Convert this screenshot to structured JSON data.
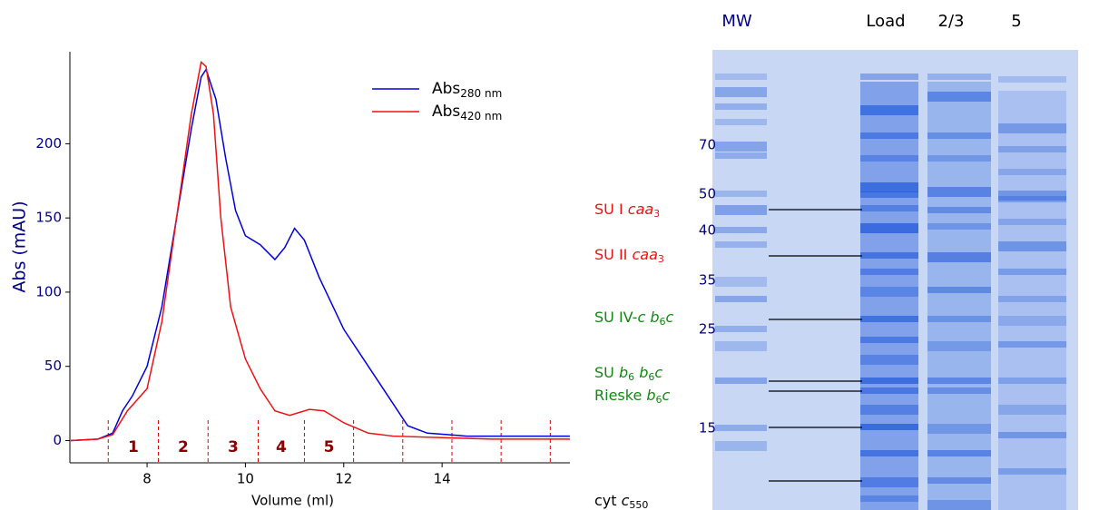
{
  "chart_data": {
    "type": "line",
    "x_label": "Volume (ml)",
    "y_label": "Abs (mAU)",
    "xlim": [
      6.43,
      16.6
    ],
    "ylim": [
      -15,
      262
    ],
    "xticks": [
      8,
      10,
      12,
      14
    ],
    "yticks": [
      0,
      50,
      100,
      150,
      200
    ],
    "grid": false,
    "series": [
      {
        "name": "Abs",
        "name_sub": "280 nm",
        "color": "#0000dd",
        "x": [
          6.45,
          7.0,
          7.3,
          7.5,
          7.7,
          8.0,
          8.3,
          8.6,
          8.9,
          9.1,
          9.2,
          9.4,
          9.6,
          9.8,
          10.0,
          10.3,
          10.6,
          10.8,
          11.0,
          11.2,
          11.5,
          12.0,
          12.5,
          13.0,
          13.3,
          13.7,
          14.5,
          15.5,
          16.6
        ],
        "values": [
          0,
          1,
          5,
          20,
          30,
          50,
          90,
          150,
          210,
          245,
          250,
          230,
          190,
          155,
          138,
          132,
          122,
          130,
          143,
          135,
          110,
          75,
          50,
          25,
          10,
          5,
          3,
          3,
          3
        ]
      },
      {
        "name": "Abs",
        "name_sub": "420 nm",
        "color": "#ee1111",
        "x": [
          6.45,
          7.0,
          7.3,
          7.6,
          8.0,
          8.3,
          8.6,
          8.9,
          9.1,
          9.2,
          9.35,
          9.5,
          9.7,
          10.0,
          10.3,
          10.6,
          10.9,
          11.3,
          11.6,
          12.0,
          12.5,
          13.0,
          14.0,
          15.0,
          16.6
        ],
        "values": [
          0,
          1,
          4,
          20,
          35,
          80,
          150,
          220,
          255,
          252,
          220,
          150,
          90,
          55,
          35,
          20,
          17,
          21,
          20,
          12,
          5,
          3,
          2,
          1,
          1
        ]
      }
    ],
    "fraction_boundaries": [
      7.21,
      8.23,
      9.24,
      10.26,
      11.2,
      12.2,
      13.2,
      14.2,
      15.2,
      16.2
    ],
    "fractions": [
      "1",
      "2",
      "3",
      "4",
      "5"
    ]
  },
  "gel": {
    "lanes": [
      "MW",
      "Load",
      "2/3",
      "5"
    ],
    "mw_markers": [
      70,
      50,
      40,
      35,
      25,
      15
    ],
    "band_labels": [
      {
        "color": "#ee1111",
        "parts": [
          {
            "text": "SU I "
          },
          {
            "text": "caa",
            "style": "italic"
          },
          {
            "text": "3",
            "style": "sub"
          }
        ]
      },
      {
        "color": "#ee1111",
        "parts": [
          {
            "text": "SU II "
          },
          {
            "text": "caa",
            "style": "italic"
          },
          {
            "text": "3",
            "style": "sub"
          }
        ]
      },
      {
        "color": "#118811",
        "parts": [
          {
            "text": "SU IV-"
          },
          {
            "text": "c",
            "style": "italic"
          },
          {
            "text": " "
          },
          {
            "text": "b",
            "style": "italic"
          },
          {
            "text": "6",
            "style": "sub"
          },
          {
            "text": "c",
            "style": "italic"
          }
        ]
      },
      {
        "color": "#118811",
        "parts": [
          {
            "text": "SU "
          },
          {
            "text": "b",
            "style": "italic"
          },
          {
            "text": "6",
            "style": "sub"
          },
          {
            "text": " "
          },
          {
            "text": "b",
            "style": "italic"
          },
          {
            "text": "6",
            "style": "sub"
          },
          {
            "text": "c",
            "style": "italic"
          }
        ]
      },
      {
        "color": "#118811",
        "parts": [
          {
            "text": "Rieske "
          },
          {
            "text": "b",
            "style": "italic"
          },
          {
            "text": "6",
            "style": "sub"
          },
          {
            "text": "c",
            "style": "italic"
          }
        ]
      },
      {
        "color": "#000000",
        "parts": [
          {
            "text": "cyt "
          },
          {
            "text": "c",
            "style": "italic"
          },
          {
            "text": "550",
            "style": "sub"
          }
        ]
      }
    ]
  }
}
